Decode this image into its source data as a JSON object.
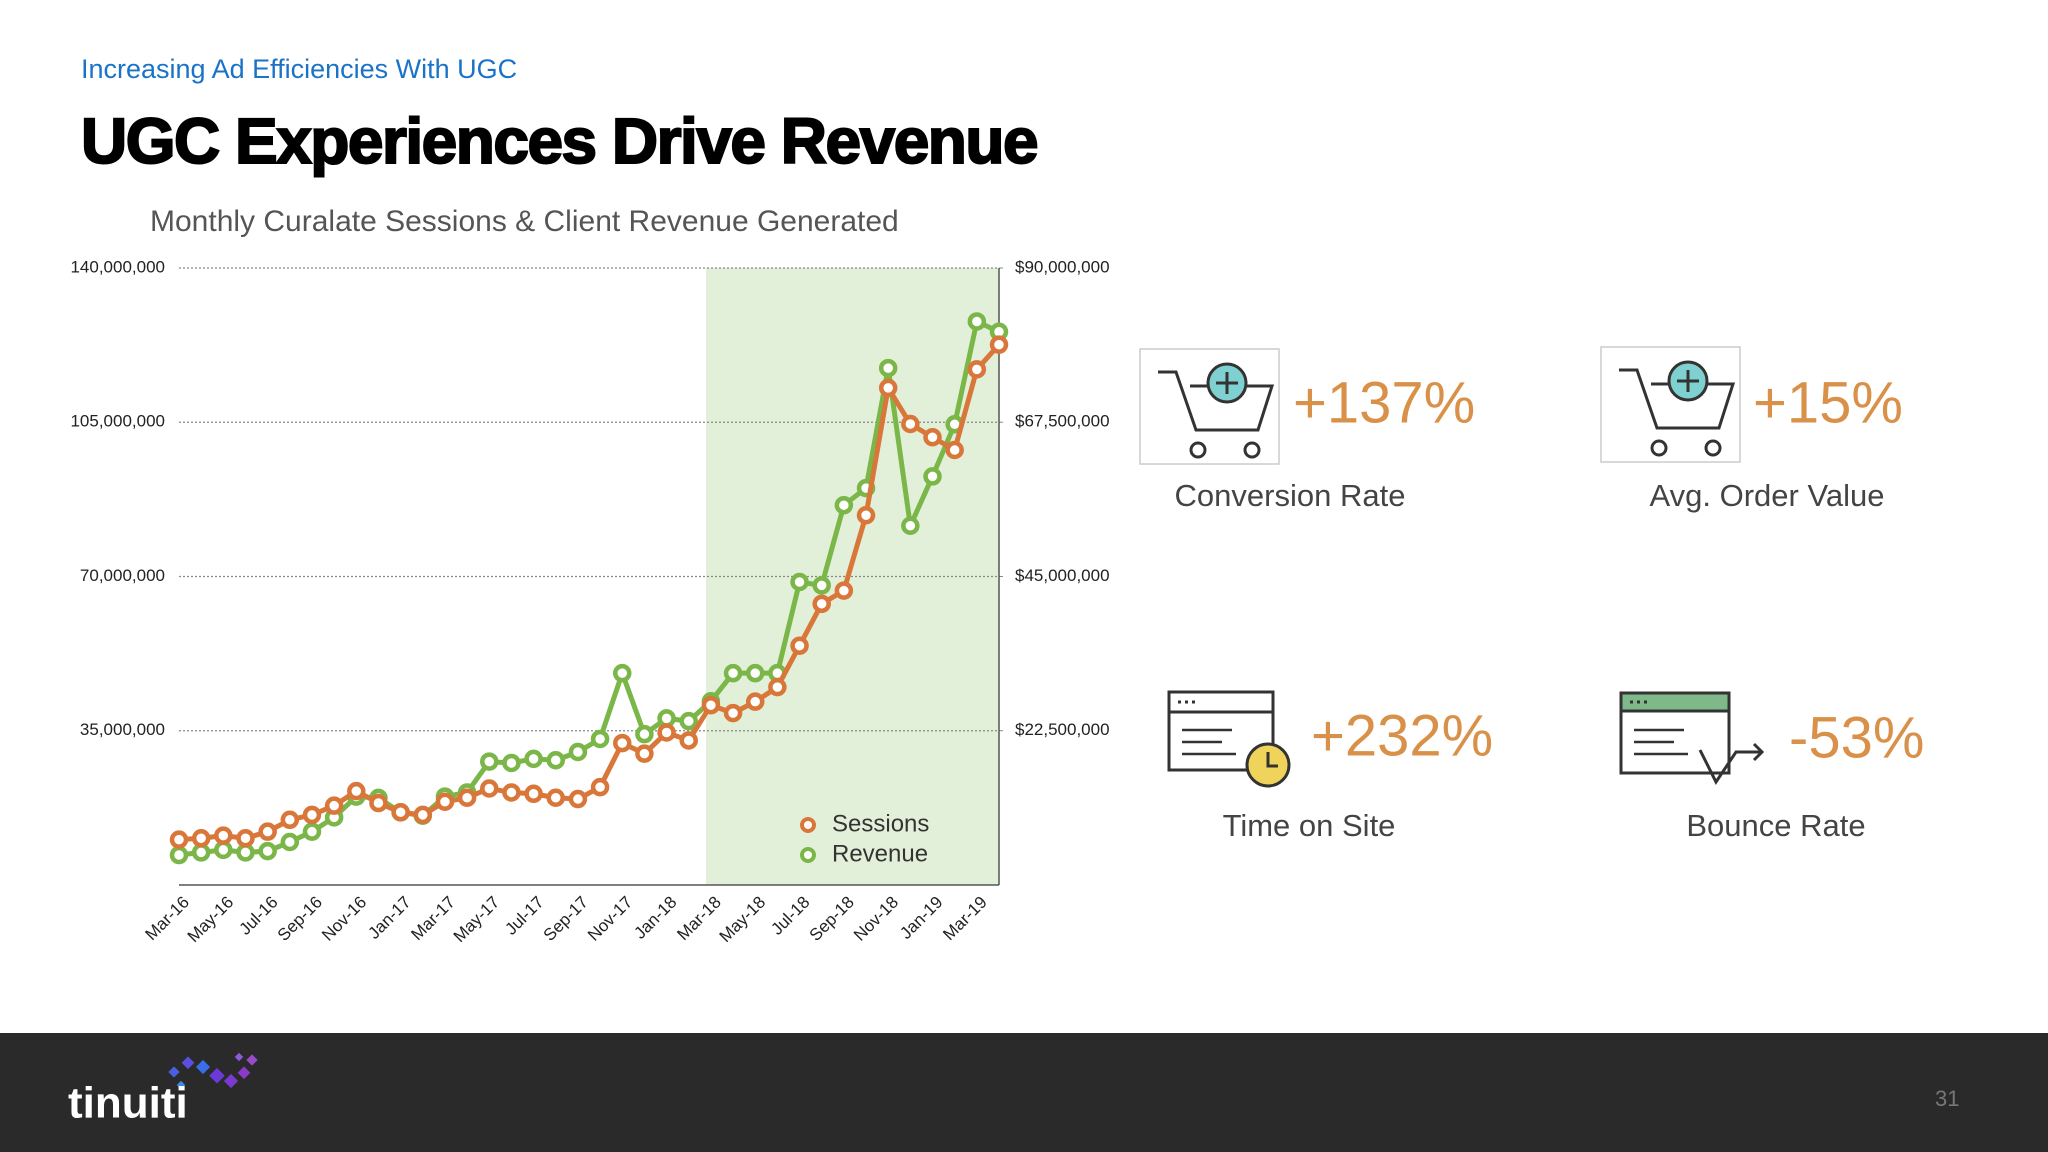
{
  "header": {
    "subtitle": "Increasing Ad Efficiencies With UGC",
    "title": "UGC Experiences Drive Revenue"
  },
  "chart_data": {
    "type": "line",
    "title": "Monthly Curalate Sessions & Client Revenue Generated",
    "categories": [
      "Mar-16",
      null,
      "May-16",
      null,
      "Jul-16",
      null,
      "Sep-16",
      null,
      "Nov-16",
      null,
      "Jan-17",
      null,
      "Mar-17",
      null,
      "May-17",
      null,
      "Jul-17",
      null,
      "Sep-17",
      null,
      "Nov-17",
      null,
      "Jan-18",
      null,
      "Mar-18",
      null,
      "May-18",
      null,
      "Jul-18",
      null,
      "Sep-18",
      null,
      "Nov-18",
      null,
      "Jan-19",
      null,
      "Mar-19",
      null
    ],
    "series": [
      {
        "name": "Sessions",
        "color": "#d9773a",
        "axis": "y",
        "values": [
          10300000,
          10600000,
          11200000,
          10600000,
          12100000,
          14800000,
          15900000,
          18000000,
          21300000,
          18600000,
          16500000,
          15900000,
          18900000,
          19800000,
          21900000,
          21000000,
          20700000,
          19800000,
          19500000,
          22200000,
          32200000,
          29800000,
          34600000,
          32800000,
          40800000,
          39000000,
          41600000,
          44900000,
          54300000,
          63800000,
          66800000,
          83900000,
          112800000,
          104600000,
          101600000,
          98700000,
          117000000,
          122600000
        ]
      },
      {
        "name": "Revenue",
        "color": "#7ab648",
        "axis": "y2",
        "values": [
          4370000,
          4750000,
          5130000,
          4750000,
          4940000,
          6270000,
          7780000,
          9870000,
          12900000,
          12700000,
          10600000,
          10100000,
          12900000,
          13500000,
          18000000,
          17800000,
          18400000,
          18200000,
          19400000,
          21300000,
          30900000,
          22000000,
          24300000,
          23900000,
          26800000,
          30900000,
          30900000,
          30900000,
          44200000,
          43700000,
          55400000,
          57900000,
          75400000,
          52400000,
          59600000,
          67200000,
          82200000,
          80700000
        ]
      }
    ],
    "ylim": [
      0,
      140000000
    ],
    "yticks": [
      {
        "value": 35000000,
        "label": "35,000,000"
      },
      {
        "value": 70000000,
        "label": "70,000,000"
      },
      {
        "value": 105000000,
        "label": "105,000,000"
      },
      {
        "value": 140000000,
        "label": "140,000,000"
      }
    ],
    "y2lim": [
      0,
      90000000
    ],
    "y2ticks": [
      {
        "value": 22500000,
        "label": "$22,500,000"
      },
      {
        "value": 45000000,
        "label": "$45,000,000"
      },
      {
        "value": 67500000,
        "label": "$67,500,000"
      },
      {
        "value": 90000000,
        "label": "$90,000,000"
      }
    ],
    "grid": true,
    "legend": "lower right"
  },
  "stats": [
    {
      "value": "+137%",
      "label": "Conversion Rate"
    },
    {
      "value": "+15%",
      "label": "Avg. Order Value"
    },
    {
      "value": "+232%",
      "label": "Time on Site"
    },
    {
      "value": "-53%",
      "label": "Bounce Rate"
    }
  ],
  "footer": {
    "brand": "tinuiti",
    "page": "31"
  }
}
